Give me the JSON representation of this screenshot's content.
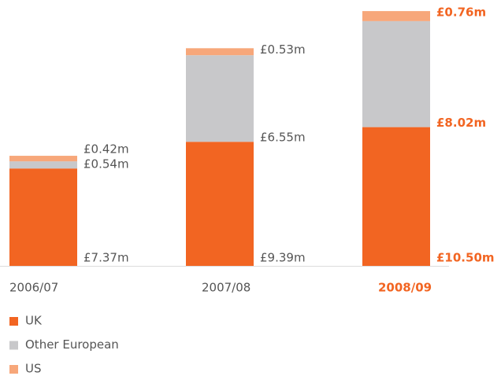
{
  "chart_data": {
    "type": "stacked_bar",
    "categories": [
      "2006/07",
      "2007/08",
      "2008/09"
    ],
    "series": [
      {
        "name": "UK",
        "color": "#f26522",
        "values": [
          7.37,
          9.39,
          10.5
        ],
        "value_labels": [
          "£7.37m",
          "£9.39m",
          "£10.50m"
        ]
      },
      {
        "name": "Other European",
        "color": "#c8c8ca",
        "values": [
          0.54,
          6.55,
          8.02
        ],
        "value_labels": [
          "£0.54m",
          "£6.55m",
          "£8.02m"
        ]
      },
      {
        "name": "US",
        "color": "#f7a77a",
        "values": [
          0.42,
          0.53,
          0.76
        ],
        "value_labels": [
          "£0.42m",
          "£0.53m",
          "£0.76m"
        ]
      }
    ],
    "legend": "bottom-left"
  }
}
